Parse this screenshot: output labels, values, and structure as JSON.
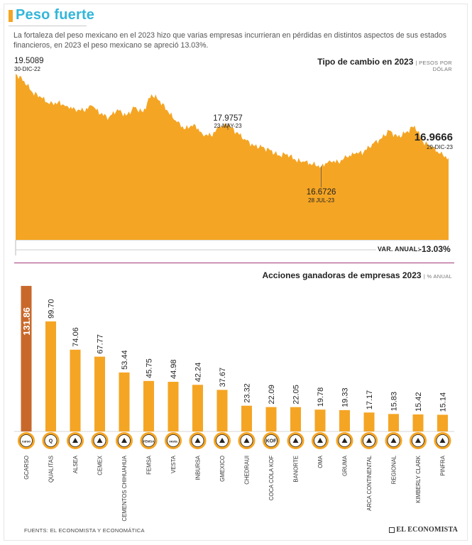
{
  "header": {
    "title": "Peso fuerte",
    "subtitle": "La fortaleza del peso mexicano en el 2023 hizo que varias empresas incurrieran en pérdidas en distintos aspectos de sus estados financieros, en 2023 el peso mexicano se apreció 13.03%."
  },
  "colors": {
    "accent": "#f5a524",
    "title": "#33b6d9",
    "highlight": "#c8692b",
    "divider": "#a23a7a"
  },
  "line_section": {
    "title": "Tipo de cambio en 2023",
    "unit": "| PESOS POR",
    "unit2": "DÓLAR",
    "annotations": [
      {
        "value": "19.5089",
        "date": "30-DIC-22"
      },
      {
        "value": "17.9757",
        "date": "23-MAY-23"
      },
      {
        "value": "16.6726",
        "date": "28 JUL-23"
      },
      {
        "value": "16.9666",
        "date": "29-DIC-23"
      }
    ],
    "variation_label": "VAR. ANUAL:",
    "variation_value": "-13.03%"
  },
  "bar_section": {
    "title": "Acciones ganadoras de empresas 2023",
    "unit": "| % ANUAL"
  },
  "chart_data": [
    {
      "type": "area",
      "title": "Tipo de cambio en 2023",
      "ylabel": "PESOS POR DÓLAR",
      "ylim": [
        14.5,
        19.6
      ],
      "x": [
        0,
        1,
        2,
        3,
        4,
        5,
        6,
        7,
        8,
        9,
        10,
        11,
        12,
        13,
        14,
        15,
        16,
        17,
        18,
        19,
        20,
        21,
        22,
        23,
        24,
        25,
        26,
        27,
        28,
        29,
        30,
        31,
        32,
        33,
        34,
        35,
        36,
        37,
        38,
        39,
        40,
        41,
        42,
        43,
        44,
        45,
        46,
        47,
        48,
        49,
        50,
        51
      ],
      "values": [
        19.51,
        19.3,
        18.95,
        18.8,
        18.6,
        18.65,
        18.55,
        18.45,
        18.4,
        18.55,
        18.3,
        18.2,
        18.45,
        18.25,
        18.5,
        18.35,
        18.9,
        18.7,
        18.35,
        18.05,
        17.85,
        18.0,
        17.7,
        17.65,
        17.9,
        17.98,
        17.75,
        17.55,
        17.35,
        17.3,
        17.2,
        17.05,
        17.1,
        16.9,
        16.85,
        16.78,
        16.72,
        16.9,
        16.85,
        17.0,
        17.1,
        17.15,
        17.4,
        17.55,
        17.8,
        17.6,
        17.75,
        17.95,
        17.45,
        17.3,
        17.1,
        16.97
      ]
    },
    {
      "type": "bar",
      "title": "Acciones ganadoras de empresas 2023",
      "ylabel": "% ANUAL",
      "ylim": [
        0,
        135
      ],
      "categories": [
        "GCARSO",
        "QUALITAS",
        "ALSEA",
        "CEMEX",
        "CEMENTOS CHIHUAHUA",
        "FEMSA",
        "VESTA",
        "INBURSA",
        "GMEXICO",
        "CHEDRAUI",
        "COCA COLA KOF",
        "BANORTE",
        "OMA",
        "GRUMA",
        "ARCA CONTINENTAL",
        "REGIONAL",
        "KIMBERLY CLARK",
        "PINFRA"
      ],
      "values": [
        131.86,
        99.7,
        74.06,
        67.77,
        53.44,
        45.75,
        44.98,
        42.24,
        37.67,
        23.32,
        22.09,
        22.05,
        19.78,
        19.33,
        17.17,
        15.83,
        15.42,
        15.14
      ],
      "labels": [
        "131.86",
        "99.70",
        "74.06",
        "67.77",
        "53.44",
        "45.75",
        "44.98",
        "42.24",
        "37.67",
        "23.32",
        "22.09",
        "22.05",
        "19.78",
        "19.33",
        "17.17",
        "15.83",
        "15.42",
        "15.14"
      ],
      "logo_text": [
        "carso",
        "Q",
        "",
        "",
        "",
        "FEMSA",
        "vesta",
        "",
        "",
        "",
        "KOF",
        "",
        "",
        "",
        "",
        "",
        "",
        ""
      ]
    }
  ],
  "footer": {
    "source": "FUENTS: EL ECONOMISTA Y ECONOMÁTICA",
    "brand": "EL ECONOMISTA"
  }
}
